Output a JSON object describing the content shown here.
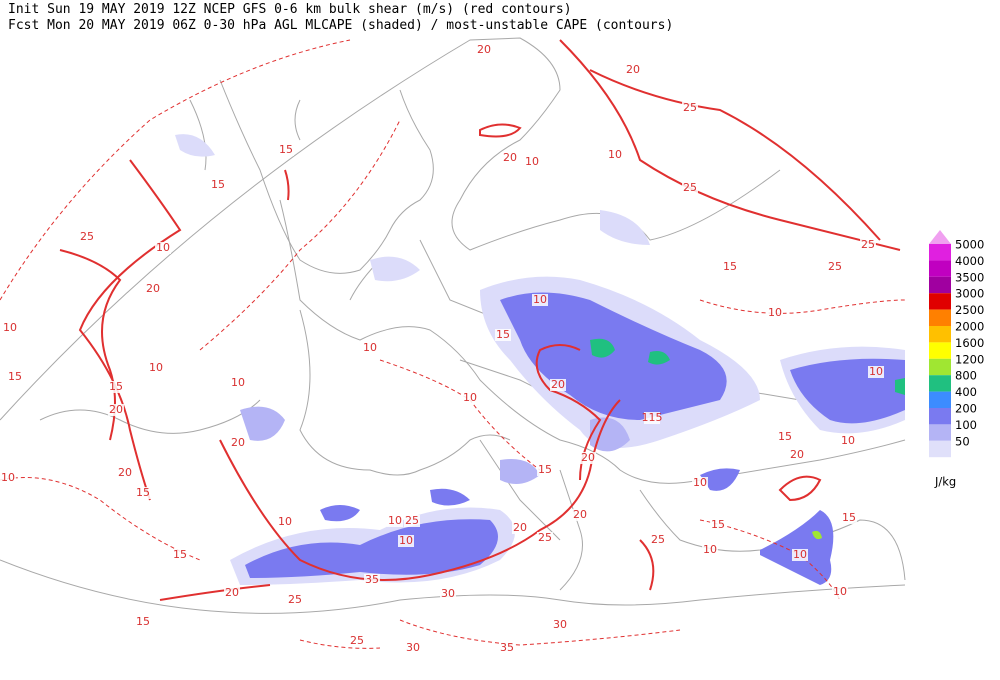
{
  "header": {
    "line1": "Init  Sun 19 MAY 2019 12Z  NCEP GFS 0-6 km bulk shear (m/s) (red contours)",
    "line2": "Fcst Mon 20 MAY 2019 06Z  0-30 hPa AGL MLCAPE (shaded) / most-unstable CAPE (contours)"
  },
  "legend": {
    "levels": [
      {
        "label": "5000",
        "color": "#e020e0"
      },
      {
        "label": "4000",
        "color": "#c000c0"
      },
      {
        "label": "3500",
        "color": "#a000a0"
      },
      {
        "label": "3000",
        "color": "#e00000"
      },
      {
        "label": "2500",
        "color": "#ff8000"
      },
      {
        "label": "2000",
        "color": "#ffc000"
      },
      {
        "label": "1600",
        "color": "#ffff00"
      },
      {
        "label": "1200",
        "color": "#a0e632"
      },
      {
        "label": "800",
        "color": "#20c080"
      },
      {
        "label": "400",
        "color": "#3c8cff"
      },
      {
        "label": "200",
        "color": "#7a7af0"
      },
      {
        "label": "100",
        "color": "#b4b4f5"
      },
      {
        "label": "50",
        "color": "#e0e0fa"
      }
    ],
    "unit": "J/kg"
  },
  "contour_labels": [
    20,
    20,
    25,
    20,
    10,
    10,
    25,
    25,
    25,
    15,
    10,
    15,
    15,
    10,
    25,
    20,
    10,
    15,
    15,
    20,
    10,
    10,
    20,
    20,
    10,
    15,
    10,
    10,
    15,
    20,
    115,
    10,
    15,
    20,
    20,
    25,
    20,
    10,
    15,
    15,
    20,
    10,
    10,
    15,
    25,
    10,
    10,
    10,
    10,
    25,
    10,
    10,
    15,
    20,
    25,
    35,
    30,
    30,
    25,
    30,
    35,
    15
  ]
}
